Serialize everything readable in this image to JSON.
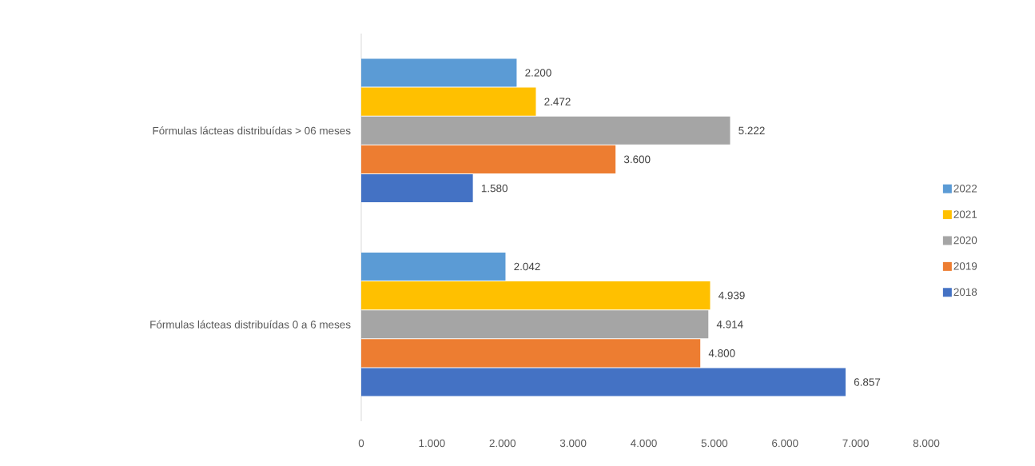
{
  "chart_data": {
    "type": "bar",
    "orientation": "horizontal",
    "categories": [
      "Fórmulas lácteas distribuídas > 06 meses",
      "Fórmulas lácteas distribuídas 0 a 6 meses"
    ],
    "series": [
      {
        "name": "2018",
        "color": "#4472c4",
        "values": [
          1580,
          6857
        ],
        "value_labels": [
          "1.580",
          "6.857"
        ]
      },
      {
        "name": "2019",
        "color": "#ed7d31",
        "values": [
          3600,
          4800
        ],
        "value_labels": [
          "3.600",
          "4.800"
        ]
      },
      {
        "name": "2020",
        "color": "#a5a5a5",
        "values": [
          5222,
          4914
        ],
        "value_labels": [
          "5.222",
          "4.914"
        ]
      },
      {
        "name": "2021",
        "color": "#ffc000",
        "values": [
          2472,
          4939
        ],
        "value_labels": [
          "2.472",
          "4.939"
        ]
      },
      {
        "name": "2022",
        "color": "#5b9bd5",
        "values": [
          2200,
          2042
        ],
        "value_labels": [
          "2.200",
          "2.042"
        ]
      }
    ],
    "xlim": [
      0,
      8000
    ],
    "xticks": [
      0,
      {
        "value": 1000,
        "label": "1.000"
      },
      {
        "value": 2000,
        "label": "2.000"
      },
      {
        "value": 3000,
        "label": "3.000"
      },
      {
        "value": 4000,
        "label": "4.000"
      },
      {
        "value": 5000,
        "label": "5.000"
      },
      {
        "value": 6000,
        "label": "6.000"
      },
      {
        "value": 7000,
        "label": "7.000"
      },
      {
        "value": 8000,
        "label": "8.000"
      }
    ],
    "grid": false,
    "legend": "right"
  }
}
